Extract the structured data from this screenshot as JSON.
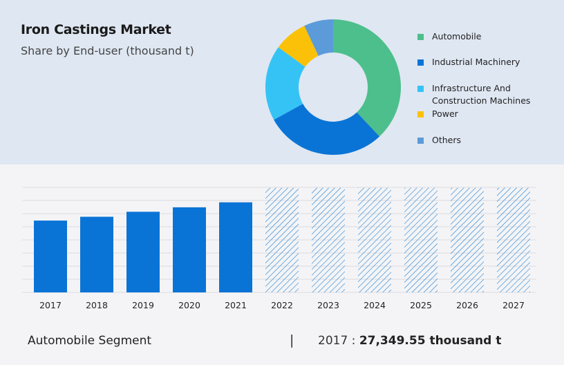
{
  "header": {
    "title": "Iron Castings Market",
    "subtitle": "Share by End-user (thousand t)"
  },
  "chart_data": [
    {
      "type": "pie",
      "variant": "donut",
      "title": "Iron Castings Market",
      "subtitle": "Share by End-user (thousand t)",
      "legend_position": "right",
      "slices": [
        {
          "label": "Automobile",
          "value": 38,
          "color": "#4dbf8c"
        },
        {
          "label": "Industrial Machinery",
          "value": 29,
          "color": "#0a74d6"
        },
        {
          "label": "Infrastructure And Construction Machines",
          "value": 18,
          "color": "#35c3f5"
        },
        {
          "label": "Power",
          "value": 8,
          "color": "#fbc108"
        },
        {
          "label": "Others",
          "value": 7,
          "color": "#5b9bd9"
        }
      ]
    },
    {
      "type": "bar",
      "categories": [
        "2017",
        "2018",
        "2019",
        "2020",
        "2021",
        "2022",
        "2023",
        "2024",
        "2025",
        "2026",
        "2027"
      ],
      "values": [
        27349.55,
        28800,
        30700,
        32400,
        34300,
        null,
        null,
        null,
        null,
        null,
        null
      ],
      "forecast_from": "2022",
      "forecast_style": "hatched",
      "bar_color": "#0a74d6",
      "ylim": [
        0,
        40000
      ],
      "grid": true
    }
  ],
  "footer": {
    "segment_label": "Automobile Segment",
    "separator": "|",
    "year": "2017",
    "colon": " : ",
    "value": "27,349.55 thousand t"
  }
}
